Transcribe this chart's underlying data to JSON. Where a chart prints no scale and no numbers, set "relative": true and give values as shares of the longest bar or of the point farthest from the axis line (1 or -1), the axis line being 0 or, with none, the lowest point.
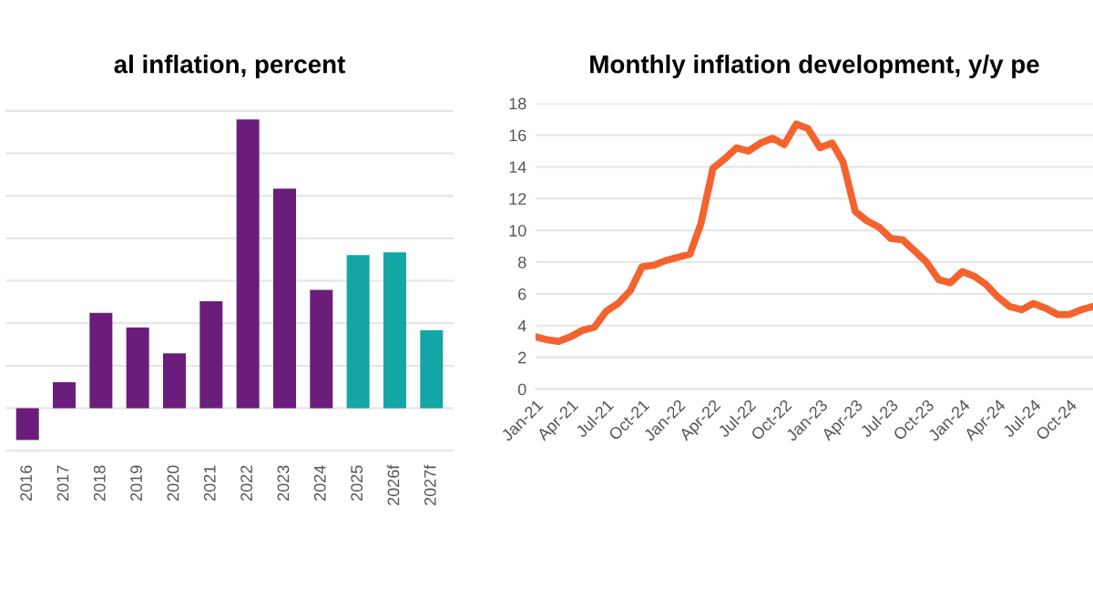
{
  "chart_data": [
    {
      "type": "bar",
      "title": "al inflation, percent",
      "relative": true,
      "grid": "y",
      "categories": [
        "2016",
        "2017",
        "2018",
        "2019",
        "2020",
        "2021",
        "2022",
        "2023",
        "2024",
        "2025",
        "2026f",
        "2027f"
      ],
      "values": [
        -0.11,
        0.09,
        0.33,
        0.28,
        0.19,
        0.37,
        1,
        0.76,
        0.41,
        0.53,
        0.54,
        0.27
      ],
      "colors": [
        "#6b1d7b",
        "#6b1d7b",
        "#6b1d7b",
        "#6b1d7b",
        "#6b1d7b",
        "#6b1d7b",
        "#6b1d7b",
        "#6b1d7b",
        "#6b1d7b",
        "#14a5a5",
        "#14a5a5",
        "#14a5a5"
      ]
    },
    {
      "type": "line",
      "title": "Monthly inflation development, y/y pe",
      "grid": "y",
      "x": [
        "2021-01",
        "2021-02",
        "2021-03",
        "2021-04",
        "2021-05",
        "2021-06",
        "2021-07",
        "2021-08",
        "2021-09",
        "2021-10",
        "2021-11",
        "2021-12",
        "2022-01",
        "2022-02",
        "2022-03",
        "2022-04",
        "2022-05",
        "2022-06",
        "2022-07",
        "2022-08",
        "2022-09",
        "2022-10",
        "2022-11",
        "2022-12",
        "2023-01",
        "2023-02",
        "2023-03",
        "2023-04",
        "2023-05",
        "2023-06",
        "2023-07",
        "2023-08",
        "2023-09",
        "2023-10",
        "2023-11",
        "2023-12",
        "2024-01",
        "2024-02",
        "2024-03",
        "2024-04",
        "2024-05",
        "2024-06",
        "2024-07",
        "2024-08",
        "2024-09",
        "2024-10",
        "2024-11",
        "2024-12"
      ],
      "series": [
        {
          "color": "#f4632e",
          "values": [
            3.3,
            3.1,
            3.0,
            3.3,
            3.7,
            3.9,
            4.9,
            5.4,
            6.2,
            7.7,
            7.8,
            8.1,
            8.3,
            8.5,
            10.4,
            13.9,
            14.5,
            15.2,
            15.0,
            15.5,
            15.8,
            15.4,
            16.7,
            16.4,
            15.2,
            15.5,
            14.3,
            11.2,
            10.6,
            10.2,
            9.5,
            9.4,
            8.7,
            8.0,
            6.9,
            6.7,
            7.4,
            7.1,
            6.6,
            5.8,
            5.2,
            5.0,
            5.4,
            5.1,
            4.7,
            4.7,
            5.0,
            5.2
          ]
        }
      ],
      "ylim": [
        0,
        18
      ],
      "yticks": [
        0,
        2,
        4,
        6,
        8,
        10,
        12,
        14,
        16,
        18
      ],
      "xlim": [
        "2021-01",
        "2024-12"
      ],
      "xticks": [
        {
          "value": "2021-01",
          "label": "Jan-21"
        },
        {
          "value": "2021-04",
          "label": "Apr-21"
        },
        {
          "value": "2021-07",
          "label": "Jul-21"
        },
        {
          "value": "2021-10",
          "label": "Oct-21"
        },
        {
          "value": "2022-01",
          "label": "Jan-22"
        },
        {
          "value": "2022-04",
          "label": "Apr-22"
        },
        {
          "value": "2022-07",
          "label": "Jul-22"
        },
        {
          "value": "2022-10",
          "label": "Oct-22"
        },
        {
          "value": "2023-01",
          "label": "Jan-23"
        },
        {
          "value": "2023-04",
          "label": "Apr-23"
        },
        {
          "value": "2023-07",
          "label": "Jul-23"
        },
        {
          "value": "2023-10",
          "label": "Oct-23"
        },
        {
          "value": "2024-01",
          "label": "Jan-24"
        },
        {
          "value": "2024-04",
          "label": "Apr-24"
        },
        {
          "value": "2024-07",
          "label": "Jul-24"
        },
        {
          "value": "2024-10",
          "label": "Oct-24"
        }
      ]
    }
  ]
}
